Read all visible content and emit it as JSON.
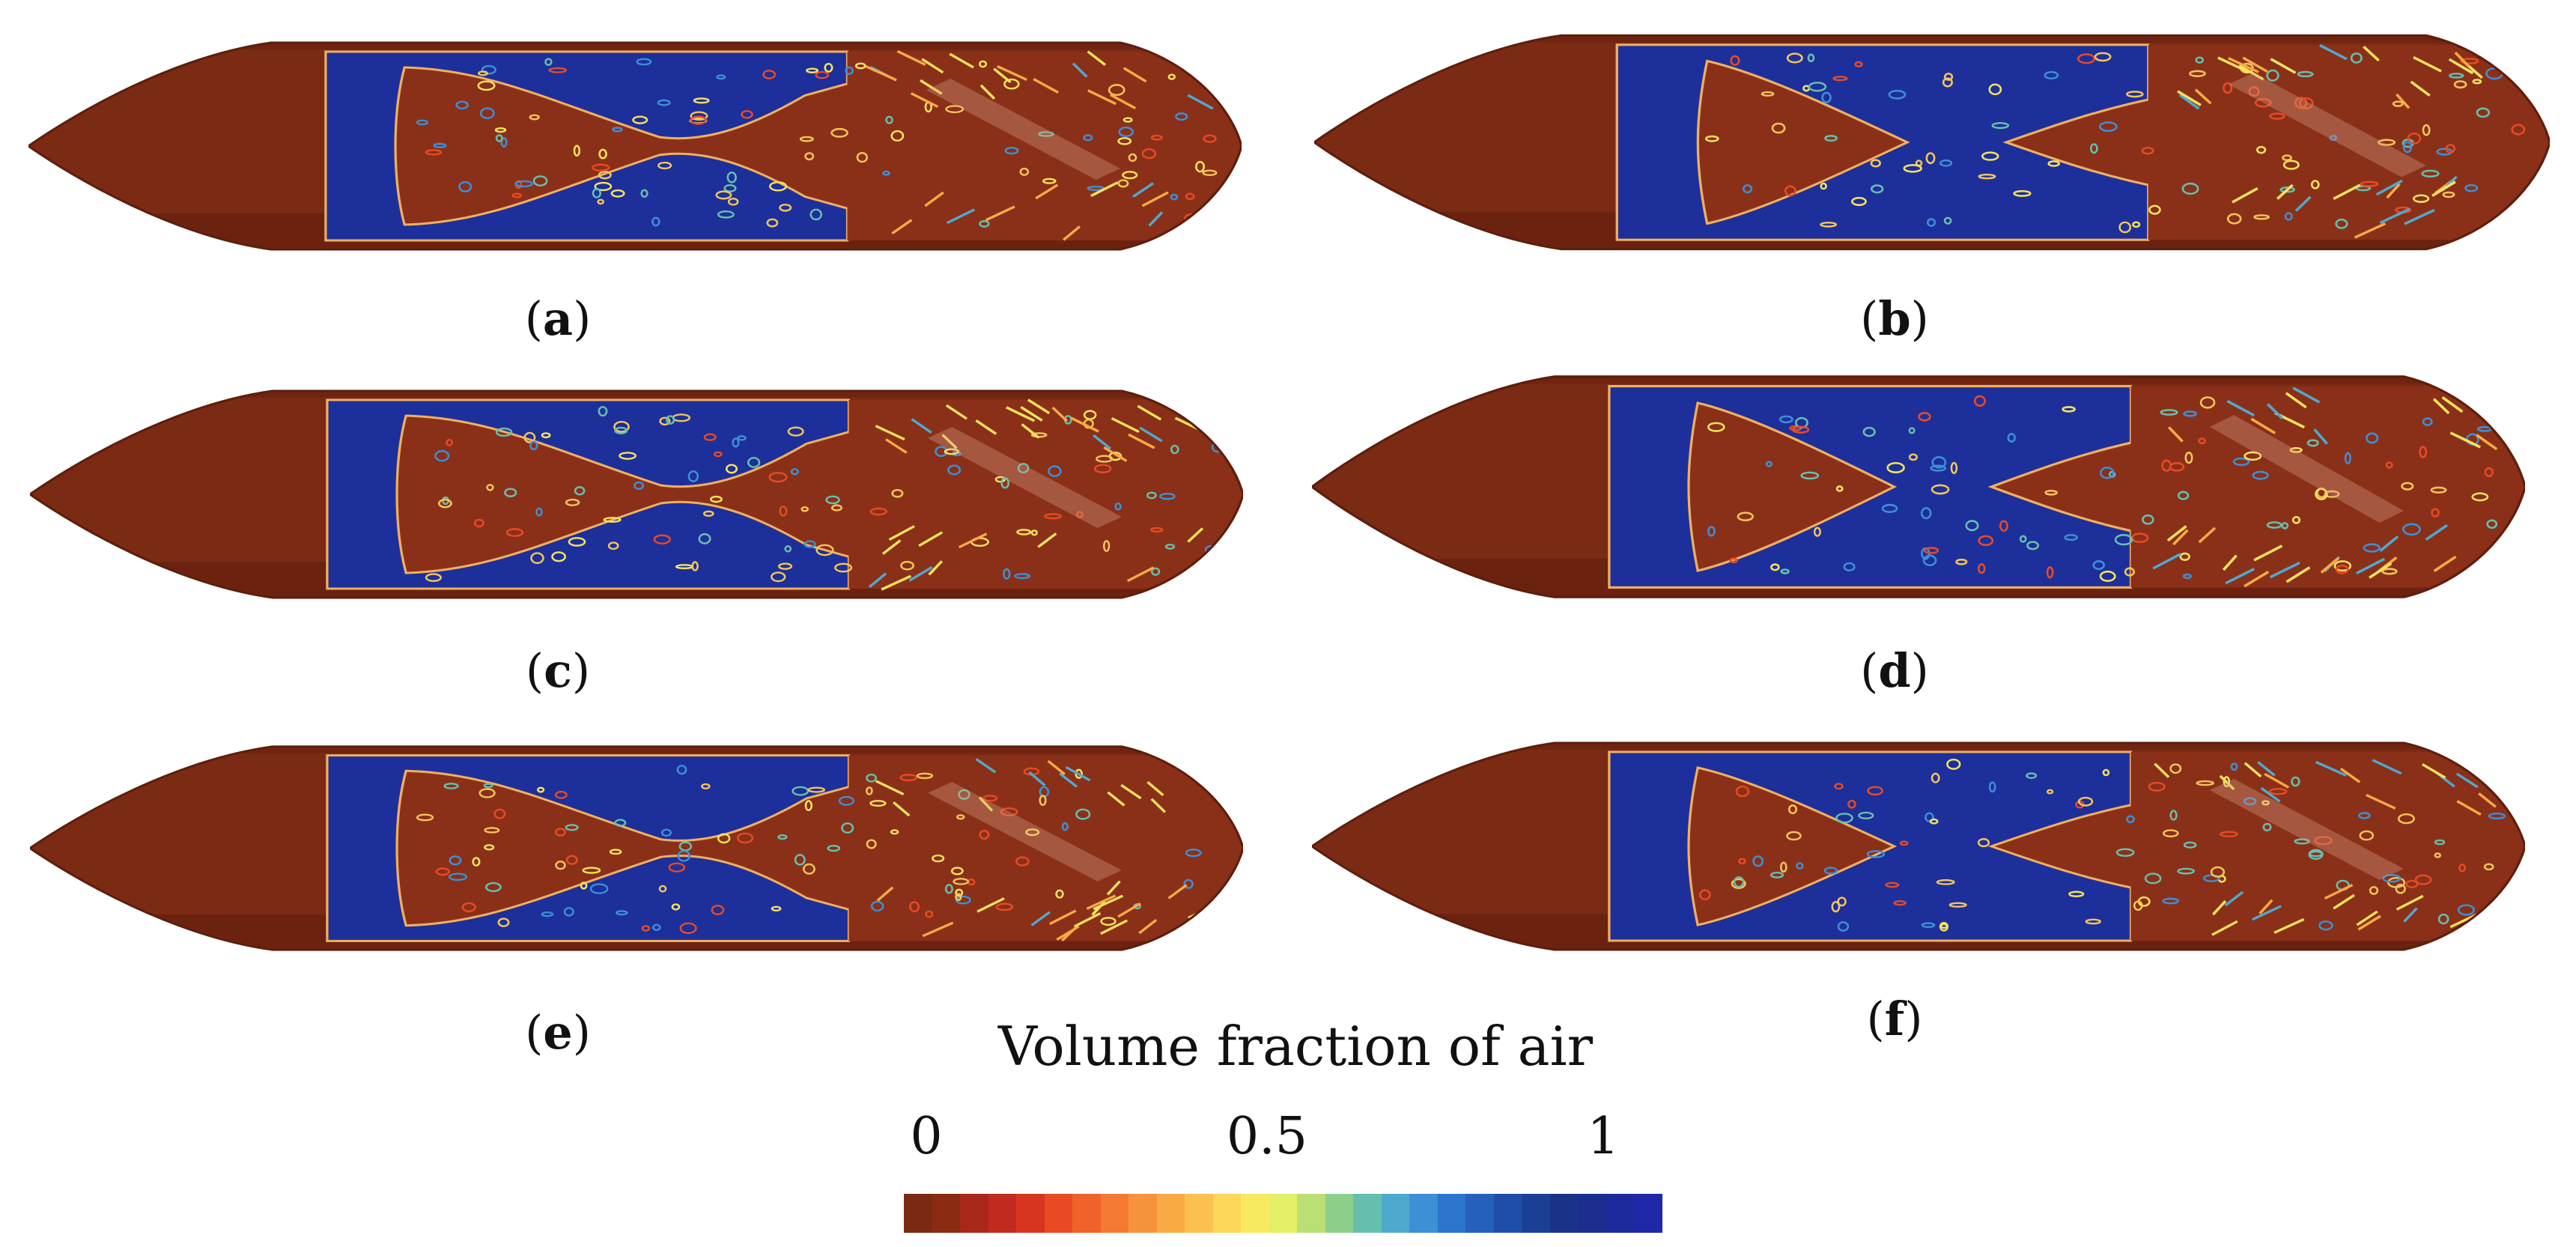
{
  "panels": [
    {
      "label": "a",
      "pattern": "neck"
    },
    {
      "label": "b",
      "pattern": "split"
    },
    {
      "label": "c",
      "pattern": "neck"
    },
    {
      "label": "d",
      "pattern": "split-wide"
    },
    {
      "label": "e",
      "pattern": "neck"
    },
    {
      "label": "f",
      "pattern": "split-wide"
    }
  ],
  "colorbar": {
    "title": "Volume fraction of air",
    "ticks": [
      "0",
      "0.5",
      "1"
    ],
    "range": [
      0,
      1
    ],
    "colors": [
      "#7a2a12",
      "#8a2b12",
      "#a8281a",
      "#c02a1f",
      "#d7351f",
      "#e84a24",
      "#f0622a",
      "#f47a33",
      "#f7923c",
      "#f9aa45",
      "#fbc04f",
      "#fcd759",
      "#f7ea5f",
      "#e3ef66",
      "#b9df75",
      "#8ccf8a",
      "#66bfae",
      "#4fa9cf",
      "#3d8fd6",
      "#2d74cf",
      "#2560bd",
      "#1f4ea8",
      "#1c3f96",
      "#1a3388",
      "#1b2d8e",
      "#1d2a9b",
      "#1f28a8"
    ]
  },
  "colors": {
    "hull": "#7b2b14",
    "hull_dark": "#5e1e0c",
    "air": "#1d2f9a",
    "wetted": "#8a3018",
    "contour": "#f0b060",
    "highlight": "#d9a08a"
  }
}
